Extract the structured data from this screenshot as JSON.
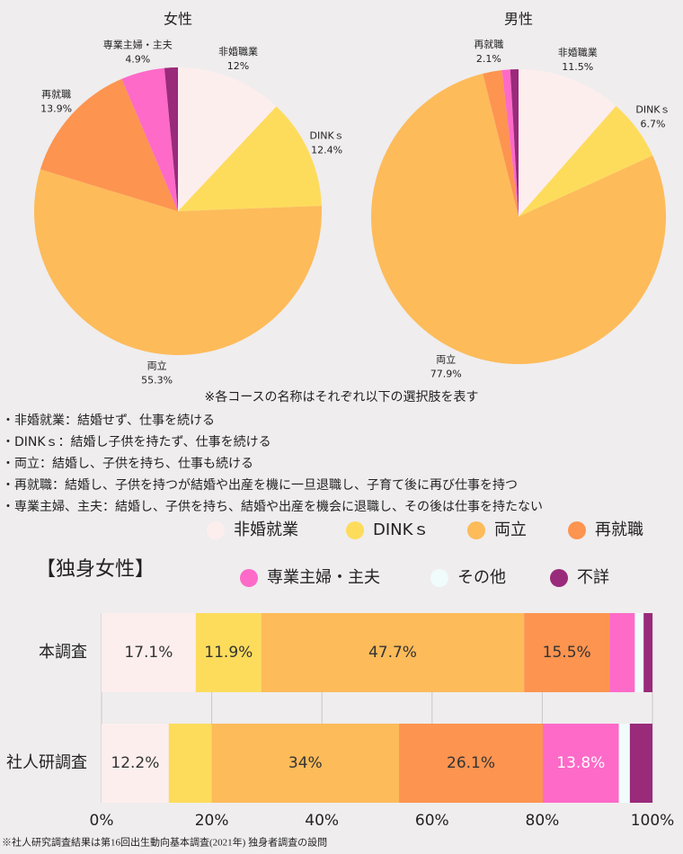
{
  "chart_data": [
    {
      "type": "pie",
      "title": "女性",
      "categories": [
        "非婚職業",
        "DINKｓ",
        "両立",
        "再就職",
        "専業主婦・主夫",
        null
      ],
      "values": [
        12,
        12.4,
        55.3,
        13.9,
        4.9,
        1.5
      ],
      "value_labels": [
        "12%",
        "12.4%",
        "55.3%",
        "13.9%",
        "4.9%",
        null
      ],
      "colors": [
        "#fdeeee",
        "#fddc5c",
        "#fdbb5a",
        "#fd9450",
        "#fd6ac8",
        "#9a2a7a"
      ]
    },
    {
      "type": "pie",
      "title": "男性",
      "categories": [
        "非婚職業",
        "DINKｓ",
        "両立",
        "再就職",
        null,
        null
      ],
      "values": [
        11.5,
        6.7,
        77.9,
        2.1,
        0.9,
        0.9
      ],
      "value_labels": [
        "11.5%",
        "6.7%",
        "77.9%",
        "2.1%",
        null,
        null
      ],
      "colors": [
        "#fdeeee",
        "#fddc5c",
        "#fdbb5a",
        "#fd9450",
        "#fd6ac8",
        "#9a2a7a"
      ]
    },
    {
      "type": "bar",
      "orientation": "horizontal",
      "stacked": true,
      "title": "【独身女性】",
      "categories": [
        "本調査",
        "社人研調査"
      ],
      "series": [
        {
          "name": "非婚就業",
          "color": "#fdeeee",
          "values": [
            17.1,
            12.2
          ],
          "value_labels": [
            "17.1%",
            "12.2%"
          ]
        },
        {
          "name": "DINKｓ",
          "color": "#fddc5c",
          "values": [
            11.9,
            7.8
          ],
          "value_labels": [
            "11.9%",
            null
          ]
        },
        {
          "name": "両立",
          "color": "#fdbb5a",
          "values": [
            47.7,
            34
          ],
          "value_labels": [
            "47.7%",
            "34%"
          ]
        },
        {
          "name": "再就職",
          "color": "#fd9450",
          "values": [
            15.5,
            26.1
          ],
          "value_labels": [
            "15.5%",
            "26.1%"
          ]
        },
        {
          "name": "専業主婦・主夫",
          "color": "#fd6ac8",
          "values": [
            4.6,
            13.8
          ],
          "value_labels": [
            null,
            "13.8%"
          ],
          "label_color": "#ffffff"
        },
        {
          "name": "その他",
          "color": "#f0fbfb",
          "values": [
            1.6,
            2.0
          ]
        },
        {
          "name": "不詳",
          "color": "#9a2a7a",
          "values": [
            1.6,
            4.1
          ]
        }
      ],
      "xlim": [
        0,
        100
      ],
      "xticks": [
        {
          "value": 0,
          "label": "0%"
        },
        {
          "value": 20,
          "label": "20%"
        },
        {
          "value": 40,
          "label": "40%"
        },
        {
          "value": 60,
          "label": "60%"
        },
        {
          "value": 80,
          "label": "80%"
        },
        {
          "value": 100,
          "label": "100%"
        }
      ],
      "grid": true,
      "legend": "top-right"
    }
  ],
  "notes": {
    "heading": "※各コースの名称はそれぞれ以下の選択肢を表す",
    "items": [
      "・非婚就業：結婚せず、仕事を続ける",
      "・DINKｓ：結婚し子供を持たず、仕事を続ける",
      "・両立：結婚し、子供を持ち、仕事も続ける",
      "・再就職：結婚し、子供を持つが結婚や出産を機に一旦退職し、子育て後に再び仕事を持つ",
      "・専業主婦、主夫：結婚し、子供を持ち、結婚や出産を機会に退職し、その後は仕事を持たない"
    ]
  },
  "footnote": "※社人研究調査結果は第16回出生動向基本調査(2021年) 独身者調査の設問"
}
